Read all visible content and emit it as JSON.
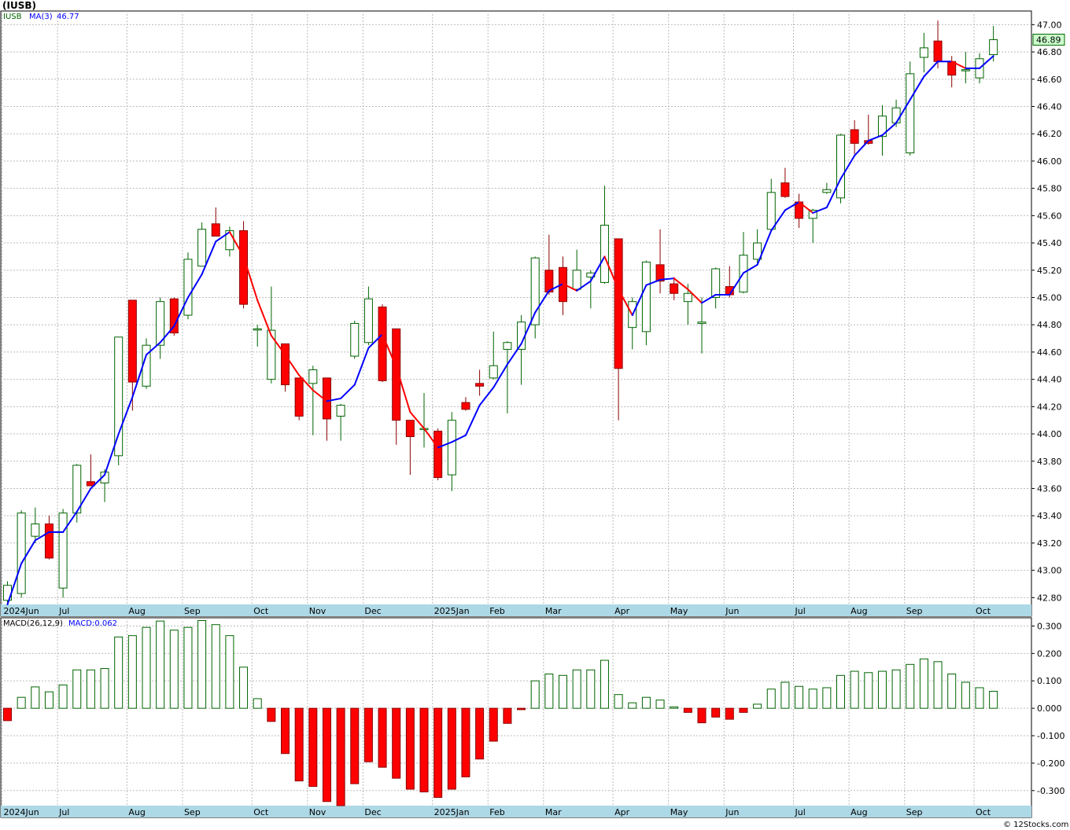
{
  "header": {
    "ticker": "(IUSB)",
    "price_label_symbol": "IUSB",
    "ma_label": "MA(3)",
    "ma_value": "46.77",
    "last_price": "46.89",
    "macd_label": "MACD(26,12,9)",
    "macd_value_label": "MACD:0.062",
    "credit": "© 12Stocks.com"
  },
  "colors": {
    "up": "#006400",
    "down": "#ff0000",
    "ma_up": "#0000ff",
    "ma_down": "#ff0000",
    "grid": "#bbbbbb",
    "axis_band": "#add8e6",
    "last_price_bg": "#ccffcc"
  },
  "chart_data": [
    {
      "type": "candlestick",
      "title": "(IUSB)",
      "ylim": [
        42.75,
        47.1
      ],
      "y_ticks": [
        "42.80",
        "43.00",
        "43.20",
        "43.40",
        "43.60",
        "43.80",
        "44.00",
        "44.20",
        "44.40",
        "44.60",
        "44.80",
        "45.00",
        "45.20",
        "45.40",
        "45.60",
        "45.80",
        "46.00",
        "46.20",
        "46.40",
        "46.60",
        "46.80",
        "47.00"
      ],
      "month_labels": [
        "2024Jun",
        "Jul",
        "Aug",
        "Sep",
        "Oct",
        "Nov",
        "Dec",
        "2025Jan",
        "Feb",
        "Mar",
        "Apr",
        "May",
        "Jun",
        "Jul",
        "Aug",
        "Sep",
        "Oct"
      ],
      "month_label_index": [
        0,
        4,
        9,
        13,
        18,
        22,
        26,
        31,
        35,
        39,
        44,
        48,
        52,
        57,
        61,
        65,
        70
      ],
      "grid": true,
      "legend": [
        "IUSB",
        "MA(3) 46.77"
      ],
      "candles": [
        {
          "o": 42.78,
          "h": 42.92,
          "l": 42.75,
          "c": 42.89
        },
        {
          "o": 42.83,
          "h": 43.44,
          "l": 42.8,
          "c": 43.42
        },
        {
          "o": 43.25,
          "h": 43.46,
          "l": 43.2,
          "c": 43.34
        },
        {
          "o": 43.34,
          "h": 43.4,
          "l": 43.08,
          "c": 43.09
        },
        {
          "o": 42.87,
          "h": 43.45,
          "l": 42.8,
          "c": 43.42
        },
        {
          "o": 43.42,
          "h": 43.78,
          "l": 43.35,
          "c": 43.77
        },
        {
          "o": 43.65,
          "h": 43.85,
          "l": 43.62,
          "c": 43.62
        },
        {
          "o": 43.64,
          "h": 43.74,
          "l": 43.5,
          "c": 43.72
        },
        {
          "o": 43.84,
          "h": 44.71,
          "l": 43.77,
          "c": 44.71
        },
        {
          "o": 44.98,
          "h": 44.98,
          "l": 44.17,
          "c": 44.38
        },
        {
          "o": 44.35,
          "h": 44.7,
          "l": 44.33,
          "c": 44.65
        },
        {
          "o": 44.65,
          "h": 45.0,
          "l": 44.55,
          "c": 44.97
        },
        {
          "o": 44.99,
          "h": 45.0,
          "l": 44.72,
          "c": 44.74
        },
        {
          "o": 44.87,
          "h": 45.33,
          "l": 44.84,
          "c": 45.28
        },
        {
          "o": 45.23,
          "h": 45.55,
          "l": 45.23,
          "c": 45.5
        },
        {
          "o": 45.54,
          "h": 45.66,
          "l": 45.45,
          "c": 45.45
        },
        {
          "o": 45.35,
          "h": 45.52,
          "l": 45.3,
          "c": 45.49
        },
        {
          "o": 45.49,
          "h": 45.56,
          "l": 44.92,
          "c": 44.95
        },
        {
          "o": 44.77,
          "h": 44.8,
          "l": 44.64,
          "c": 44.77
        },
        {
          "o": 44.4,
          "h": 45.08,
          "l": 44.37,
          "c": 44.76
        },
        {
          "o": 44.66,
          "h": 44.66,
          "l": 44.31,
          "c": 44.36
        },
        {
          "o": 44.41,
          "h": 44.41,
          "l": 44.1,
          "c": 44.13
        },
        {
          "o": 44.37,
          "h": 44.5,
          "l": 43.99,
          "c": 44.47
        },
        {
          "o": 44.41,
          "h": 44.41,
          "l": 43.95,
          "c": 44.11
        },
        {
          "o": 44.13,
          "h": 44.22,
          "l": 43.95,
          "c": 44.21
        },
        {
          "o": 44.57,
          "h": 44.83,
          "l": 44.55,
          "c": 44.81
        },
        {
          "o": 44.67,
          "h": 45.08,
          "l": 44.65,
          "c": 44.99
        },
        {
          "o": 44.93,
          "h": 44.95,
          "l": 44.38,
          "c": 44.39
        },
        {
          "o": 44.77,
          "h": 44.77,
          "l": 43.92,
          "c": 44.1
        },
        {
          "o": 44.1,
          "h": 44.1,
          "l": 43.7,
          "c": 43.98
        },
        {
          "o": 44.04,
          "h": 44.3,
          "l": 43.9,
          "c": 44.04
        },
        {
          "o": 44.02,
          "h": 44.04,
          "l": 43.66,
          "c": 43.68
        },
        {
          "o": 43.7,
          "h": 44.16,
          "l": 43.58,
          "c": 44.1
        },
        {
          "o": 44.23,
          "h": 44.27,
          "l": 44.17,
          "c": 44.18
        },
        {
          "o": 44.37,
          "h": 44.47,
          "l": 44.28,
          "c": 44.35
        },
        {
          "o": 44.41,
          "h": 44.75,
          "l": 44.4,
          "c": 44.5
        },
        {
          "o": 44.62,
          "h": 44.68,
          "l": 44.15,
          "c": 44.67
        },
        {
          "o": 44.62,
          "h": 44.87,
          "l": 44.36,
          "c": 44.82
        },
        {
          "o": 44.8,
          "h": 45.3,
          "l": 44.7,
          "c": 45.29
        },
        {
          "o": 45.2,
          "h": 45.46,
          "l": 45.02,
          "c": 45.04
        },
        {
          "o": 45.22,
          "h": 45.3,
          "l": 44.87,
          "c": 44.97
        },
        {
          "o": 45.06,
          "h": 45.35,
          "l": 45.05,
          "c": 45.2
        },
        {
          "o": 45.15,
          "h": 45.2,
          "l": 44.92,
          "c": 45.18
        },
        {
          "o": 45.11,
          "h": 45.82,
          "l": 45.1,
          "c": 45.53
        },
        {
          "o": 45.43,
          "h": 45.43,
          "l": 44.1,
          "c": 44.48
        },
        {
          "o": 44.78,
          "h": 45.0,
          "l": 44.62,
          "c": 44.97
        },
        {
          "o": 44.75,
          "h": 45.27,
          "l": 44.65,
          "c": 45.26
        },
        {
          "o": 45.24,
          "h": 45.5,
          "l": 45.03,
          "c": 45.12
        },
        {
          "o": 45.1,
          "h": 45.15,
          "l": 44.98,
          "c": 45.03
        },
        {
          "o": 44.97,
          "h": 45.1,
          "l": 44.8,
          "c": 45.03
        },
        {
          "o": 44.81,
          "h": 45.0,
          "l": 44.59,
          "c": 44.82
        },
        {
          "o": 45.0,
          "h": 45.22,
          "l": 44.92,
          "c": 45.21
        },
        {
          "o": 45.08,
          "h": 45.23,
          "l": 45.0,
          "c": 45.02
        },
        {
          "o": 45.04,
          "h": 45.48,
          "l": 45.03,
          "c": 45.31
        },
        {
          "o": 45.28,
          "h": 45.5,
          "l": 45.25,
          "c": 45.4
        },
        {
          "o": 45.5,
          "h": 45.87,
          "l": 45.5,
          "c": 45.77
        },
        {
          "o": 45.84,
          "h": 45.95,
          "l": 45.73,
          "c": 45.74
        },
        {
          "o": 45.7,
          "h": 45.76,
          "l": 45.51,
          "c": 45.58
        },
        {
          "o": 45.58,
          "h": 45.65,
          "l": 45.4,
          "c": 45.64
        },
        {
          "o": 45.77,
          "h": 45.84,
          "l": 45.76,
          "c": 45.79
        },
        {
          "o": 45.73,
          "h": 46.2,
          "l": 45.69,
          "c": 46.19
        },
        {
          "o": 46.23,
          "h": 46.3,
          "l": 46.05,
          "c": 46.13
        },
        {
          "o": 46.15,
          "h": 46.34,
          "l": 46.12,
          "c": 46.13
        },
        {
          "o": 46.18,
          "h": 46.41,
          "l": 46.04,
          "c": 46.33
        },
        {
          "o": 46.28,
          "h": 46.45,
          "l": 46.25,
          "c": 46.39
        },
        {
          "o": 46.06,
          "h": 46.73,
          "l": 46.04,
          "c": 46.64
        },
        {
          "o": 46.76,
          "h": 46.94,
          "l": 46.65,
          "c": 46.83
        },
        {
          "o": 46.88,
          "h": 47.03,
          "l": 46.68,
          "c": 46.73
        },
        {
          "o": 46.73,
          "h": 46.77,
          "l": 46.54,
          "c": 46.63
        },
        {
          "o": 46.67,
          "h": 46.8,
          "l": 46.57,
          "c": 46.67
        },
        {
          "o": 46.61,
          "h": 46.79,
          "l": 46.57,
          "c": 46.75
        },
        {
          "o": 46.78,
          "h": 46.99,
          "l": 46.73,
          "c": 46.89
        }
      ],
      "ma": [
        42.75,
        43.05,
        43.22,
        43.28,
        43.28,
        43.43,
        43.6,
        43.7,
        44.0,
        44.27,
        44.58,
        44.67,
        44.79,
        45.0,
        45.17,
        45.41,
        45.48,
        45.3,
        44.98,
        44.72,
        44.58,
        44.43,
        44.32,
        44.24,
        44.26,
        44.36,
        44.63,
        44.73,
        44.49,
        44.16,
        44.04,
        43.9,
        43.94,
        43.99,
        44.21,
        44.34,
        44.51,
        44.66,
        44.89,
        45.05,
        45.1,
        45.05,
        45.12,
        45.3,
        45.06,
        44.87,
        45.09,
        45.13,
        45.14,
        45.06,
        44.96,
        45.02,
        45.02,
        45.18,
        45.24,
        45.49,
        45.64,
        45.7,
        45.62,
        45.66,
        45.87,
        46.04,
        46.15,
        46.19,
        46.28,
        46.45,
        46.62,
        46.73,
        46.73,
        46.68,
        46.68,
        46.77
      ]
    },
    {
      "type": "bar",
      "title": "MACD(26,12,9)",
      "ylim": [
        -0.355,
        0.33
      ],
      "y_ticks": [
        "0.300",
        "0.200",
        "0.100",
        "0.000",
        "-0.100",
        "-0.200",
        "-0.300"
      ],
      "legend": [
        "MACD(26,12,9)",
        "MACD:0.062"
      ],
      "values": [
        -0.045,
        0.04,
        0.078,
        0.06,
        0.085,
        0.14,
        0.14,
        0.145,
        0.26,
        0.265,
        0.295,
        0.318,
        0.285,
        0.295,
        0.32,
        0.305,
        0.265,
        0.15,
        0.035,
        -0.048,
        -0.165,
        -0.265,
        -0.285,
        -0.34,
        -0.355,
        -0.275,
        -0.195,
        -0.215,
        -0.255,
        -0.295,
        -0.305,
        -0.325,
        -0.295,
        -0.25,
        -0.185,
        -0.12,
        -0.055,
        -0.005,
        0.1,
        0.125,
        0.12,
        0.14,
        0.14,
        0.175,
        0.05,
        0.02,
        0.04,
        0.03,
        0.005,
        -0.015,
        -0.053,
        -0.032,
        -0.04,
        -0.015,
        0.015,
        0.07,
        0.095,
        0.08,
        0.07,
        0.075,
        0.12,
        0.135,
        0.13,
        0.135,
        0.14,
        0.16,
        0.18,
        0.17,
        0.125,
        0.095,
        0.075,
        0.062
      ]
    }
  ]
}
